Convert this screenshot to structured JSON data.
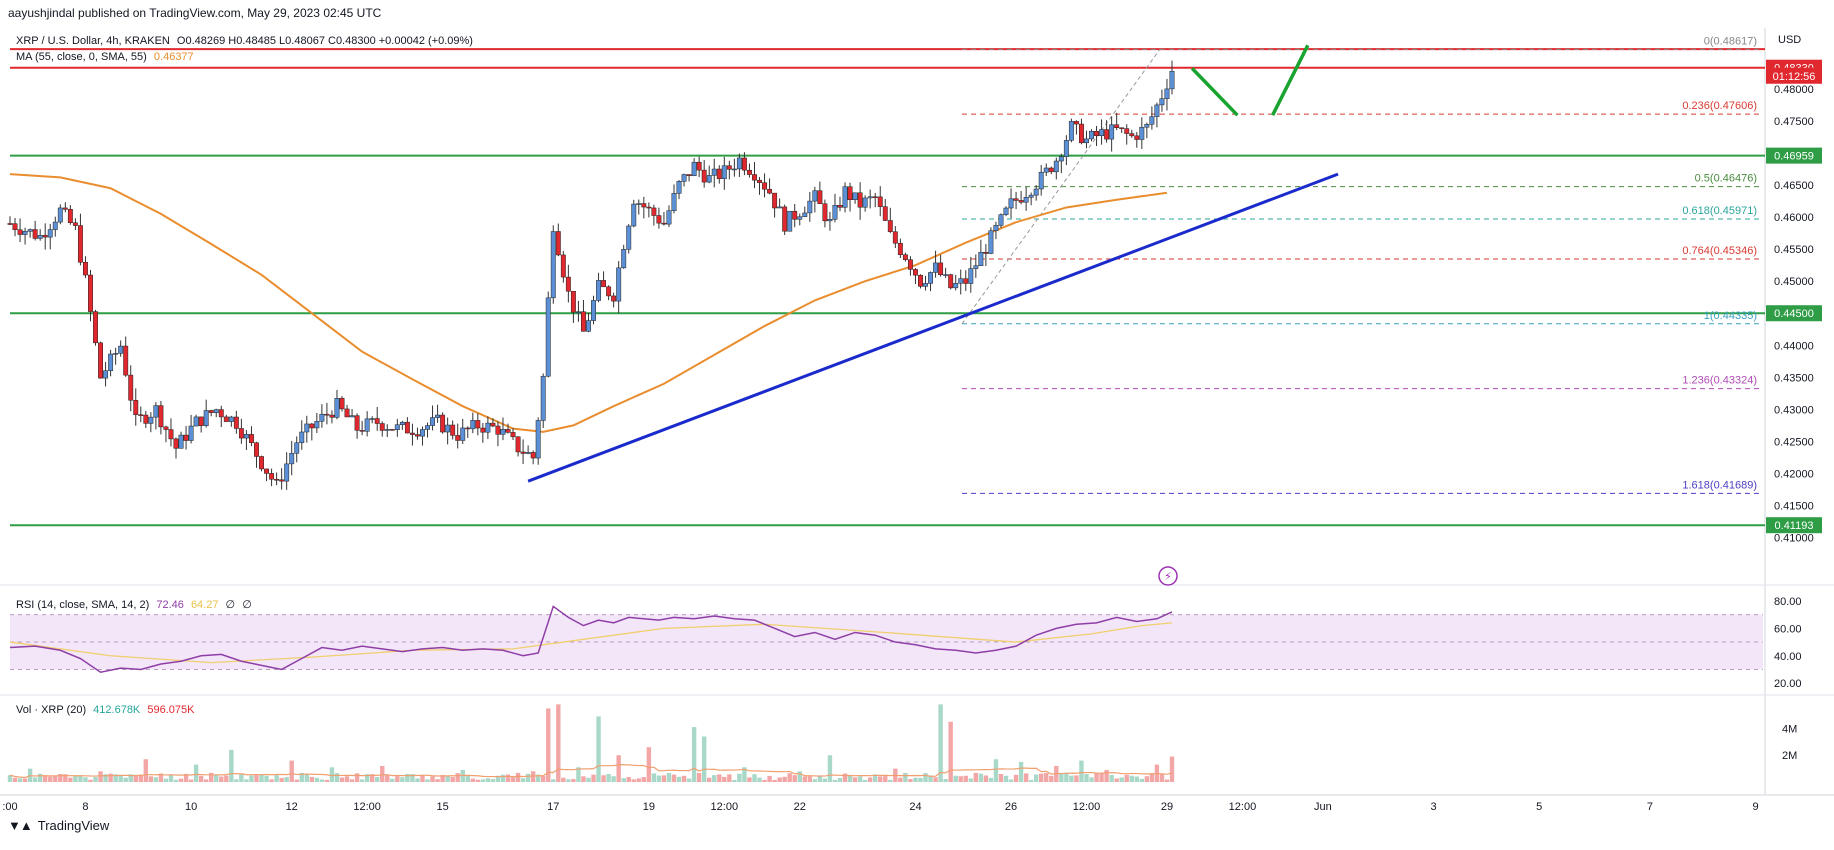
{
  "header": {
    "published": "aayushjindal published on TradingView.com, May 29, 2023 02:45 UTC",
    "symbol": "XRP / U.S. Dollar, 4h, KRAKEN",
    "ohlc": "O0.48269 H0.48485 L0.48067 C0.48300 +0.00042 (+0.09%)",
    "ma_label": "MA (55, close, 0, SMA, 55)",
    "ma_value": "0.46377"
  },
  "rsi_legend": {
    "label": "RSI (14, close, SMA, 14, 2)",
    "value": "72.46",
    "sma": "64.27",
    "x1": "∅",
    "x2": "∅"
  },
  "vol_legend": {
    "label": "Vol · XRP (20)",
    "value": "412.678K",
    "ma": "596.075K"
  },
  "footer": {
    "brand": "TradingView"
  },
  "colors": {
    "up": "#5b8fd6",
    "down": "#e0282e",
    "ma": "#e98d2e",
    "trend": "#1a2acb",
    "support": "#2e9d46",
    "resistance": "#e0282e",
    "rsi": "#8e3ea6",
    "rsi_band": "#eedcf5",
    "vol_up": "#a8d8c8",
    "vol_down": "#f3a6a6"
  },
  "chart_data": {
    "type": "candlestick",
    "price_axis": {
      "currency": "USD",
      "ticks": [
        "0.48000",
        "0.47500",
        "0.47000",
        "0.46500",
        "0.46000",
        "0.45500",
        "0.45000",
        "0.44500",
        "0.44000",
        "0.43500",
        "0.43000",
        "0.42500",
        "0.42000",
        "0.41500",
        "0.41000"
      ],
      "tick_values": [
        0.48,
        0.475,
        0.47,
        0.465,
        0.46,
        0.455,
        0.45,
        0.445,
        0.44,
        0.435,
        0.43,
        0.425,
        0.42,
        0.415,
        0.41
      ],
      "ylim": [
        0.4065,
        0.4895
      ]
    },
    "x_axis": {
      "tick_labels": [
        ":00",
        "8",
        "10",
        "12",
        "12:00",
        "15",
        "17",
        "19",
        "12:00",
        "22",
        "24",
        "26",
        "12:00",
        "29",
        "12:00",
        "Jun",
        "3",
        "5",
        "7",
        "9"
      ],
      "tick_index": [
        0,
        15,
        36,
        56,
        71,
        86,
        108,
        127,
        142,
        157,
        180,
        199,
        214,
        230,
        245,
        261,
        283,
        304,
        326,
        347
      ]
    },
    "badges": [
      {
        "label": "0.48330",
        "value": 0.4833,
        "kind": "red"
      },
      {
        "label": "01:12:56",
        "value": 0.48205,
        "kind": "red-timer"
      },
      {
        "label": "0.46959",
        "value": 0.46959,
        "kind": "green"
      },
      {
        "label": "0.44500",
        "value": 0.445,
        "kind": "green"
      },
      {
        "label": "0.41193",
        "value": 0.41193,
        "kind": "green"
      }
    ],
    "horizontal_levels": [
      {
        "value": 0.4862,
        "kind": "resistance"
      },
      {
        "value": 0.4833,
        "kind": "resistance"
      },
      {
        "value": 0.46959,
        "kind": "support"
      },
      {
        "value": 0.445,
        "kind": "support"
      },
      {
        "value": 0.41193,
        "kind": "support"
      }
    ],
    "fibonacci": [
      {
        "ratio": "0",
        "label": "(0.48617)",
        "value": 0.48617,
        "color": "#888888"
      },
      {
        "ratio": "0.236",
        "label": "(0.47606)",
        "value": 0.47606,
        "color": "#d83a32"
      },
      {
        "ratio": "0.5",
        "label": "(0.46476)",
        "value": 0.46476,
        "color": "#4a8c3e"
      },
      {
        "ratio": "0.618",
        "label": "(0.45971)",
        "value": 0.45971,
        "color": "#2aa59a"
      },
      {
        "ratio": "0.764",
        "label": "(0.45346)",
        "value": 0.45346,
        "color": "#d83a32"
      },
      {
        "ratio": "1",
        "label": "(0.44335)",
        "value": 0.44335,
        "color": "#3aa0c0"
      },
      {
        "ratio": "1.236",
        "label": "(0.43324)",
        "value": 0.43324,
        "color": "#b04bb6"
      },
      {
        "ratio": "1.618",
        "label": "(0.41689)",
        "value": 0.41689,
        "color": "#4b3ec4"
      }
    ],
    "trendline": {
      "from": {
        "i": 103,
        "p": 0.4188
      },
      "to": {
        "i": 264,
        "p": 0.4667
      }
    },
    "projection": [
      {
        "i": 235,
        "p": 0.4832
      },
      {
        "i": 244,
        "p": 0.4759
      },
      {
        "i": 251,
        "p": 0.4759
      },
      {
        "i": 258,
        "p": 0.4868
      }
    ],
    "ma_points": [
      [
        0,
        0.4667
      ],
      [
        10,
        0.4662
      ],
      [
        20,
        0.4645
      ],
      [
        30,
        0.4605
      ],
      [
        40,
        0.4558
      ],
      [
        50,
        0.451
      ],
      [
        60,
        0.445
      ],
      [
        70,
        0.439
      ],
      [
        80,
        0.4347
      ],
      [
        90,
        0.4305
      ],
      [
        100,
        0.427
      ],
      [
        106,
        0.4265
      ],
      [
        112,
        0.4275
      ],
      [
        120,
        0.4305
      ],
      [
        130,
        0.434
      ],
      [
        140,
        0.4385
      ],
      [
        150,
        0.443
      ],
      [
        160,
        0.447
      ],
      [
        170,
        0.45
      ],
      [
        180,
        0.4525
      ],
      [
        190,
        0.456
      ],
      [
        200,
        0.4592
      ],
      [
        210,
        0.4615
      ],
      [
        220,
        0.4627
      ],
      [
        230,
        0.4638
      ]
    ],
    "candle_keys": [
      [
        0,
        0.459
      ],
      [
        6,
        0.457
      ],
      [
        10,
        0.461
      ],
      [
        13,
        0.458
      ],
      [
        15,
        0.45
      ],
      [
        18,
        0.435
      ],
      [
        22,
        0.44
      ],
      [
        25,
        0.428
      ],
      [
        29,
        0.43
      ],
      [
        33,
        0.424
      ],
      [
        37,
        0.428
      ],
      [
        41,
        0.43
      ],
      [
        45,
        0.428
      ],
      [
        49,
        0.423
      ],
      [
        53,
        0.418
      ],
      [
        57,
        0.425
      ],
      [
        61,
        0.428
      ],
      [
        65,
        0.4305
      ],
      [
        69,
        0.427
      ],
      [
        73,
        0.428
      ],
      [
        77,
        0.427
      ],
      [
        81,
        0.427
      ],
      [
        85,
        0.428
      ],
      [
        89,
        0.426
      ],
      [
        93,
        0.4275
      ],
      [
        97,
        0.427
      ],
      [
        101,
        0.424
      ],
      [
        104,
        0.4225
      ],
      [
        106,
        0.435
      ],
      [
        108,
        0.459
      ],
      [
        111,
        0.448
      ],
      [
        114,
        0.442
      ],
      [
        117,
        0.449
      ],
      [
        120,
        0.448
      ],
      [
        122,
        0.456
      ],
      [
        124,
        0.463
      ],
      [
        127,
        0.461
      ],
      [
        130,
        0.459
      ],
      [
        133,
        0.465
      ],
      [
        136,
        0.468
      ],
      [
        139,
        0.466
      ],
      [
        142,
        0.467
      ],
      [
        145,
        0.469
      ],
      [
        148,
        0.467
      ],
      [
        151,
        0.464
      ],
      [
        154,
        0.459
      ],
      [
        157,
        0.461
      ],
      [
        160,
        0.463
      ],
      [
        163,
        0.459
      ],
      [
        166,
        0.464
      ],
      [
        169,
        0.462
      ],
      [
        172,
        0.463
      ],
      [
        175,
        0.457
      ],
      [
        178,
        0.454
      ],
      [
        181,
        0.45
      ],
      [
        184,
        0.452
      ],
      [
        187,
        0.449
      ],
      [
        190,
        0.45
      ],
      [
        193,
        0.454
      ],
      [
        196,
        0.458
      ],
      [
        199,
        0.462
      ],
      [
        202,
        0.464
      ],
      [
        205,
        0.466
      ],
      [
        208,
        0.469
      ],
      [
        211,
        0.474
      ],
      [
        214,
        0.472
      ],
      [
        217,
        0.473
      ],
      [
        220,
        0.4735
      ],
      [
        223,
        0.4725
      ],
      [
        226,
        0.474
      ],
      [
        229,
        0.479
      ],
      [
        231,
        0.483
      ]
    ],
    "rsi": {
      "ticks": [
        "80.00",
        "60.00",
        "40.00",
        "20.00"
      ],
      "tick_values": [
        80,
        60,
        40,
        20
      ],
      "ylim": [
        15,
        88
      ],
      "band": [
        30,
        70
      ],
      "points": [
        [
          0,
          46
        ],
        [
          5,
          47
        ],
        [
          10,
          44
        ],
        [
          14,
          38
        ],
        [
          18,
          28
        ],
        [
          22,
          31
        ],
        [
          26,
          30
        ],
        [
          30,
          34
        ],
        [
          34,
          36
        ],
        [
          38,
          40
        ],
        [
          42,
          41
        ],
        [
          46,
          36
        ],
        [
          50,
          33
        ],
        [
          54,
          30
        ],
        [
          58,
          38
        ],
        [
          62,
          46
        ],
        [
          66,
          44
        ],
        [
          70,
          47
        ],
        [
          74,
          45
        ],
        [
          78,
          43
        ],
        [
          82,
          45
        ],
        [
          86,
          46
        ],
        [
          90,
          44
        ],
        [
          94,
          45
        ],
        [
          98,
          44
        ],
        [
          102,
          40
        ],
        [
          105,
          42
        ],
        [
          108,
          76
        ],
        [
          111,
          68
        ],
        [
          114,
          62
        ],
        [
          117,
          66
        ],
        [
          120,
          64
        ],
        [
          123,
          68
        ],
        [
          126,
          67
        ],
        [
          129,
          66
        ],
        [
          132,
          68
        ],
        [
          136,
          67
        ],
        [
          140,
          69
        ],
        [
          144,
          67
        ],
        [
          148,
          66
        ],
        [
          152,
          60
        ],
        [
          156,
          54
        ],
        [
          160,
          57
        ],
        [
          164,
          52
        ],
        [
          168,
          57
        ],
        [
          172,
          55
        ],
        [
          176,
          50
        ],
        [
          180,
          48
        ],
        [
          184,
          45
        ],
        [
          188,
          44
        ],
        [
          192,
          42
        ],
        [
          196,
          44
        ],
        [
          200,
          47
        ],
        [
          204,
          55
        ],
        [
          208,
          60
        ],
        [
          212,
          63
        ],
        [
          216,
          64
        ],
        [
          220,
          68
        ],
        [
          224,
          65
        ],
        [
          228,
          67
        ],
        [
          231,
          72
        ]
      ],
      "sma_points": [
        [
          0,
          50
        ],
        [
          20,
          40
        ],
        [
          40,
          35
        ],
        [
          60,
          39
        ],
        [
          80,
          44
        ],
        [
          100,
          45
        ],
        [
          110,
          50
        ],
        [
          130,
          60
        ],
        [
          150,
          63
        ],
        [
          170,
          58
        ],
        [
          185,
          54
        ],
        [
          200,
          50
        ],
        [
          215,
          56
        ],
        [
          225,
          62
        ],
        [
          231,
          64
        ]
      ]
    },
    "volume": {
      "ticks": [
        "4M",
        "2M"
      ],
      "tick_values": [
        4,
        2
      ],
      "ylim": [
        0,
        6.5
      ],
      "spikes": [
        [
          4,
          1.0
        ],
        [
          18,
          0.8
        ],
        [
          27,
          1.7
        ],
        [
          37,
          1.3
        ],
        [
          44,
          2.4
        ],
        [
          56,
          1.6
        ],
        [
          64,
          1.1
        ],
        [
          74,
          1.2
        ],
        [
          90,
          0.9
        ],
        [
          104,
          0.8
        ],
        [
          107,
          5.5
        ],
        [
          109,
          5.8
        ],
        [
          113,
          1.1
        ],
        [
          117,
          4.9
        ],
        [
          121,
          2.0
        ],
        [
          127,
          2.6
        ],
        [
          136,
          4.1
        ],
        [
          138,
          3.4
        ],
        [
          146,
          1.1
        ],
        [
          157,
          0.8
        ],
        [
          163,
          2.0
        ],
        [
          176,
          1.0
        ],
        [
          185,
          5.8
        ],
        [
          187,
          4.5
        ],
        [
          196,
          1.7
        ],
        [
          201,
          1.5
        ],
        [
          208,
          1.2
        ],
        [
          213,
          1.6
        ],
        [
          218,
          0.9
        ],
        [
          228,
          1.3
        ],
        [
          231,
          1.9
        ]
      ]
    }
  }
}
